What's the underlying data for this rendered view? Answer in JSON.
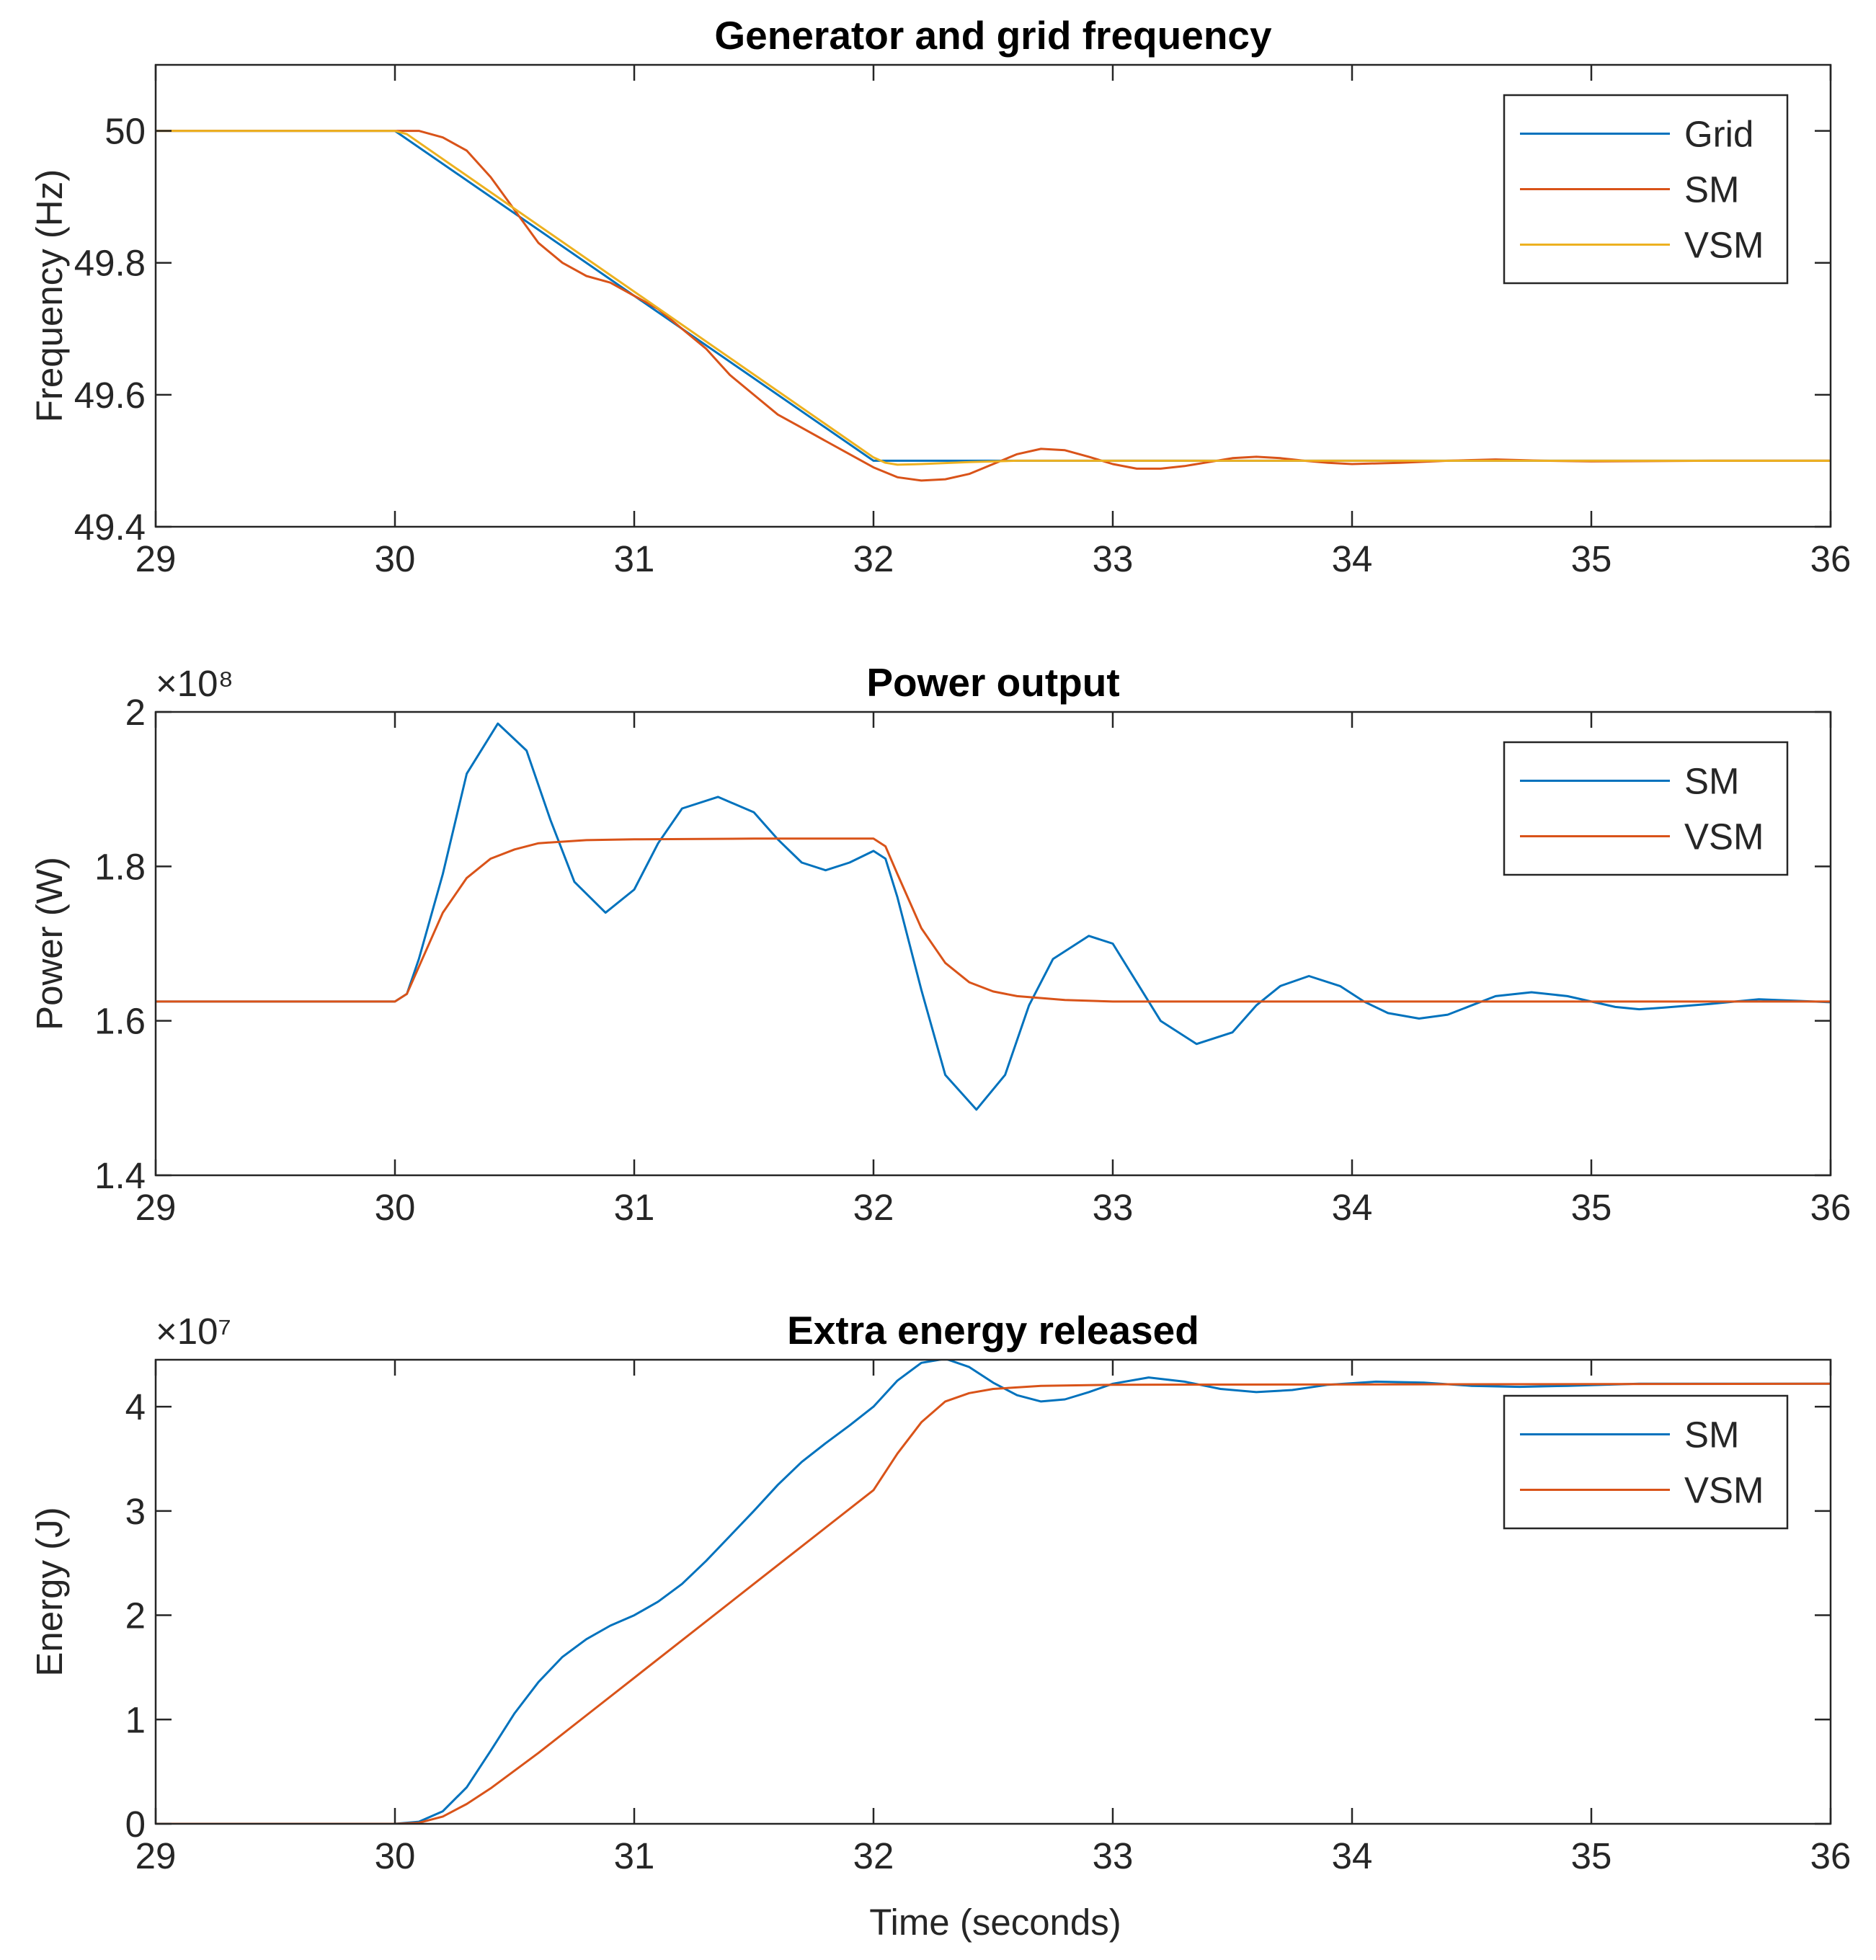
{
  "figure": {
    "xlabel": "Time (seconds)"
  },
  "chart_data": [
    {
      "type": "line",
      "title": "Generator and grid frequency",
      "xlabel": "",
      "ylabel": "Frequency (Hz)",
      "xlim": [
        29,
        36
      ],
      "ylim": [
        49.4,
        50.1
      ],
      "x_ticks": [
        29,
        30,
        31,
        32,
        33,
        34,
        35,
        36
      ],
      "x_tick_labels": [
        "29",
        "30",
        "31",
        "32",
        "33",
        "34",
        "35",
        "36"
      ],
      "y_ticks": [
        49.4,
        49.6,
        49.8,
        50
      ],
      "y_tick_labels": [
        "49.4",
        "49.6",
        "49.8",
        "50"
      ],
      "exponent_label": "",
      "grid": false,
      "legend_position": "top-right",
      "series": [
        {
          "name": "Grid",
          "color": "#0072BD",
          "x": [
            29,
            30,
            32,
            36
          ],
          "y": [
            50,
            50,
            49.5,
            49.5
          ]
        },
        {
          "name": "SM",
          "color": "#D95319",
          "x": [
            29,
            30,
            30.1,
            30.2,
            30.3,
            30.4,
            30.5,
            30.6,
            30.7,
            30.8,
            30.9,
            31.0,
            31.1,
            31.2,
            31.3,
            31.4,
            31.5,
            31.6,
            31.7,
            31.8,
            31.9,
            32.0,
            32.1,
            32.2,
            32.3,
            32.4,
            32.5,
            32.6,
            32.7,
            32.8,
            32.9,
            33.0,
            33.1,
            33.2,
            33.3,
            33.4,
            33.5,
            33.6,
            33.7,
            33.8,
            33.9,
            34.0,
            34.2,
            34.4,
            34.6,
            34.8,
            35.0,
            35.5,
            36
          ],
          "y": [
            50,
            50,
            50.0,
            49.99,
            49.97,
            49.93,
            49.88,
            49.83,
            49.8,
            49.78,
            49.77,
            49.75,
            49.73,
            49.7,
            49.67,
            49.63,
            49.6,
            49.57,
            49.55,
            49.53,
            49.51,
            49.49,
            49.475,
            49.47,
            49.472,
            49.48,
            49.495,
            49.51,
            49.518,
            49.516,
            49.506,
            49.495,
            49.488,
            49.488,
            49.492,
            49.498,
            49.504,
            49.506,
            49.504,
            49.5,
            49.497,
            49.495,
            49.497,
            49.5,
            49.502,
            49.5,
            49.499,
            49.5,
            49.5
          ]
        },
        {
          "name": "VSM",
          "color": "#EDB120",
          "x": [
            29,
            30,
            30.05,
            32.0,
            32.05,
            32.1,
            32.2,
            32.4,
            32.6,
            33.0,
            36
          ],
          "y": [
            50,
            50,
            49.995,
            49.505,
            49.497,
            49.494,
            49.495,
            49.498,
            49.5,
            49.5,
            49.5
          ]
        }
      ]
    },
    {
      "type": "line",
      "title": "Power output",
      "xlabel": "",
      "ylabel": "Power (W)",
      "xlim": [
        29,
        36
      ],
      "ylim": [
        1.4,
        2.0
      ],
      "x_ticks": [
        29,
        30,
        31,
        32,
        33,
        34,
        35,
        36
      ],
      "x_tick_labels": [
        "29",
        "30",
        "31",
        "32",
        "33",
        "34",
        "35",
        "36"
      ],
      "y_ticks": [
        1.4,
        1.6,
        1.8,
        2.0
      ],
      "y_tick_labels": [
        "1.4",
        "1.6",
        "1.8",
        "2"
      ],
      "exponent_label": "×10⁸",
      "grid": false,
      "legend_position": "top-right",
      "series": [
        {
          "name": "SM",
          "color": "#0072BD",
          "x": [
            29,
            30,
            30.05,
            30.1,
            30.2,
            30.3,
            30.43,
            30.55,
            30.65,
            30.75,
            30.88,
            31.0,
            31.1,
            31.2,
            31.35,
            31.5,
            31.6,
            31.7,
            31.8,
            31.9,
            32.0,
            32.05,
            32.1,
            32.2,
            32.3,
            32.43,
            32.55,
            32.65,
            32.75,
            32.9,
            33.0,
            33.1,
            33.2,
            33.35,
            33.5,
            33.6,
            33.7,
            33.82,
            33.95,
            34.05,
            34.15,
            34.28,
            34.4,
            34.5,
            34.6,
            34.75,
            34.9,
            35.0,
            35.1,
            35.2,
            35.3,
            35.5,
            35.7,
            35.85,
            36.0
          ],
          "y": [
            1.625,
            1.625,
            1.635,
            1.68,
            1.79,
            1.92,
            1.985,
            1.95,
            1.86,
            1.78,
            1.74,
            1.77,
            1.83,
            1.875,
            1.89,
            1.87,
            1.835,
            1.805,
            1.795,
            1.805,
            1.82,
            1.81,
            1.76,
            1.64,
            1.53,
            1.485,
            1.53,
            1.62,
            1.68,
            1.71,
            1.7,
            1.65,
            1.6,
            1.57,
            1.585,
            1.62,
            1.645,
            1.658,
            1.645,
            1.625,
            1.61,
            1.603,
            1.608,
            1.62,
            1.632,
            1.637,
            1.632,
            1.625,
            1.618,
            1.615,
            1.617,
            1.622,
            1.628,
            1.626,
            1.624
          ]
        },
        {
          "name": "VSM",
          "color": "#D95319",
          "x": [
            29,
            30,
            30.05,
            30.1,
            30.2,
            30.3,
            30.4,
            30.5,
            30.6,
            30.8,
            31.0,
            31.5,
            32.0,
            32.05,
            32.1,
            32.2,
            32.3,
            32.4,
            32.5,
            32.6,
            32.8,
            33.0,
            33.5,
            36
          ],
          "y": [
            1.625,
            1.625,
            1.635,
            1.67,
            1.74,
            1.785,
            1.81,
            1.822,
            1.83,
            1.834,
            1.835,
            1.836,
            1.836,
            1.826,
            1.79,
            1.72,
            1.675,
            1.65,
            1.638,
            1.632,
            1.627,
            1.625,
            1.625,
            1.625
          ]
        }
      ]
    },
    {
      "type": "line",
      "title": "Extra energy released",
      "xlabel": "Time (seconds)",
      "ylabel": "Energy (J)",
      "xlim": [
        29,
        36
      ],
      "ylim": [
        0,
        4.45
      ],
      "x_ticks": [
        29,
        30,
        31,
        32,
        33,
        34,
        35,
        36
      ],
      "x_tick_labels": [
        "29",
        "30",
        "31",
        "32",
        "33",
        "34",
        "35",
        "36"
      ],
      "y_ticks": [
        0,
        1,
        2,
        3,
        4
      ],
      "y_tick_labels": [
        "0",
        "1",
        "2",
        "3",
        "4"
      ],
      "exponent_label": "×10⁷",
      "grid": false,
      "legend_position": "top-right",
      "series": [
        {
          "name": "SM",
          "color": "#0072BD",
          "x": [
            29,
            30,
            30.1,
            30.2,
            30.3,
            30.4,
            30.5,
            30.6,
            30.7,
            30.8,
            30.9,
            31.0,
            31.1,
            31.2,
            31.3,
            31.4,
            31.5,
            31.6,
            31.7,
            31.8,
            31.9,
            32.0,
            32.1,
            32.2,
            32.3,
            32.4,
            32.5,
            32.6,
            32.7,
            32.8,
            32.9,
            33.0,
            33.15,
            33.3,
            33.45,
            33.6,
            33.75,
            33.9,
            34.1,
            34.3,
            34.5,
            34.7,
            34.9,
            35.2,
            35.5,
            36
          ],
          "y": [
            0,
            0,
            0.02,
            0.12,
            0.35,
            0.7,
            1.06,
            1.36,
            1.6,
            1.77,
            1.9,
            2.0,
            2.13,
            2.3,
            2.52,
            2.76,
            3.0,
            3.25,
            3.47,
            3.65,
            3.82,
            4.0,
            4.25,
            4.42,
            4.46,
            4.38,
            4.23,
            4.11,
            4.05,
            4.07,
            4.14,
            4.22,
            4.28,
            4.24,
            4.17,
            4.14,
            4.16,
            4.21,
            4.24,
            4.23,
            4.2,
            4.19,
            4.2,
            4.22,
            4.22,
            4.22
          ]
        },
        {
          "name": "VSM",
          "color": "#D95319",
          "x": [
            29,
            30,
            30.1,
            30.2,
            30.3,
            30.4,
            30.6,
            30.8,
            31.0,
            31.5,
            32.0,
            32.1,
            32.2,
            32.3,
            32.4,
            32.5,
            32.7,
            33.0,
            36
          ],
          "y": [
            0,
            0,
            0.01,
            0.07,
            0.19,
            0.34,
            0.68,
            1.04,
            1.4,
            2.3,
            3.2,
            3.55,
            3.85,
            4.05,
            4.13,
            4.17,
            4.2,
            4.21,
            4.22
          ]
        }
      ]
    }
  ]
}
